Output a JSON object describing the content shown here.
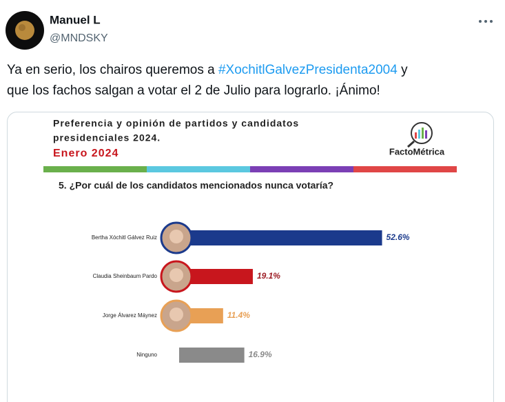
{
  "tweet": {
    "name": "Manuel L",
    "handle": "@MNDSKY",
    "text": [
      "Ya en serio, los chairos queremos a ",
      "#XochitlGalvezPresidenta2004",
      " y",
      "que los fachos salgan a votar el 2 de Julio para lograrlo. ¡Ánimo!"
    ]
  },
  "chart_data": {
    "type": "bar",
    "orientation": "horizontal",
    "title": [
      "Preferencia y opinión de partidos y candidatos",
      "presidenciales 2024."
    ],
    "subtitle": "Enero 2024",
    "brand": "FactoMétrica",
    "question": "5. ¿Por cuál de los candidatos mencionados nunca votaría?",
    "categories": [
      "Bertha Xóchitl Gálvez Ruiz",
      "Claudia Sheinbaum Pardo",
      "Jorge Álvarez Máynez",
      "Ninguno"
    ],
    "values": [
      52.6,
      19.1,
      11.4,
      16.9
    ],
    "value_labels": [
      "52.6%",
      "19.1%",
      "11.4%",
      "16.9%"
    ],
    "colors": [
      "#1b3a8c",
      "#c8161d",
      "#e8a055",
      "#8a8a8a"
    ],
    "label_colors": [
      "#1b3a8c",
      "#9c1a22",
      "#e8a055",
      "#8a8a8a"
    ]
  }
}
